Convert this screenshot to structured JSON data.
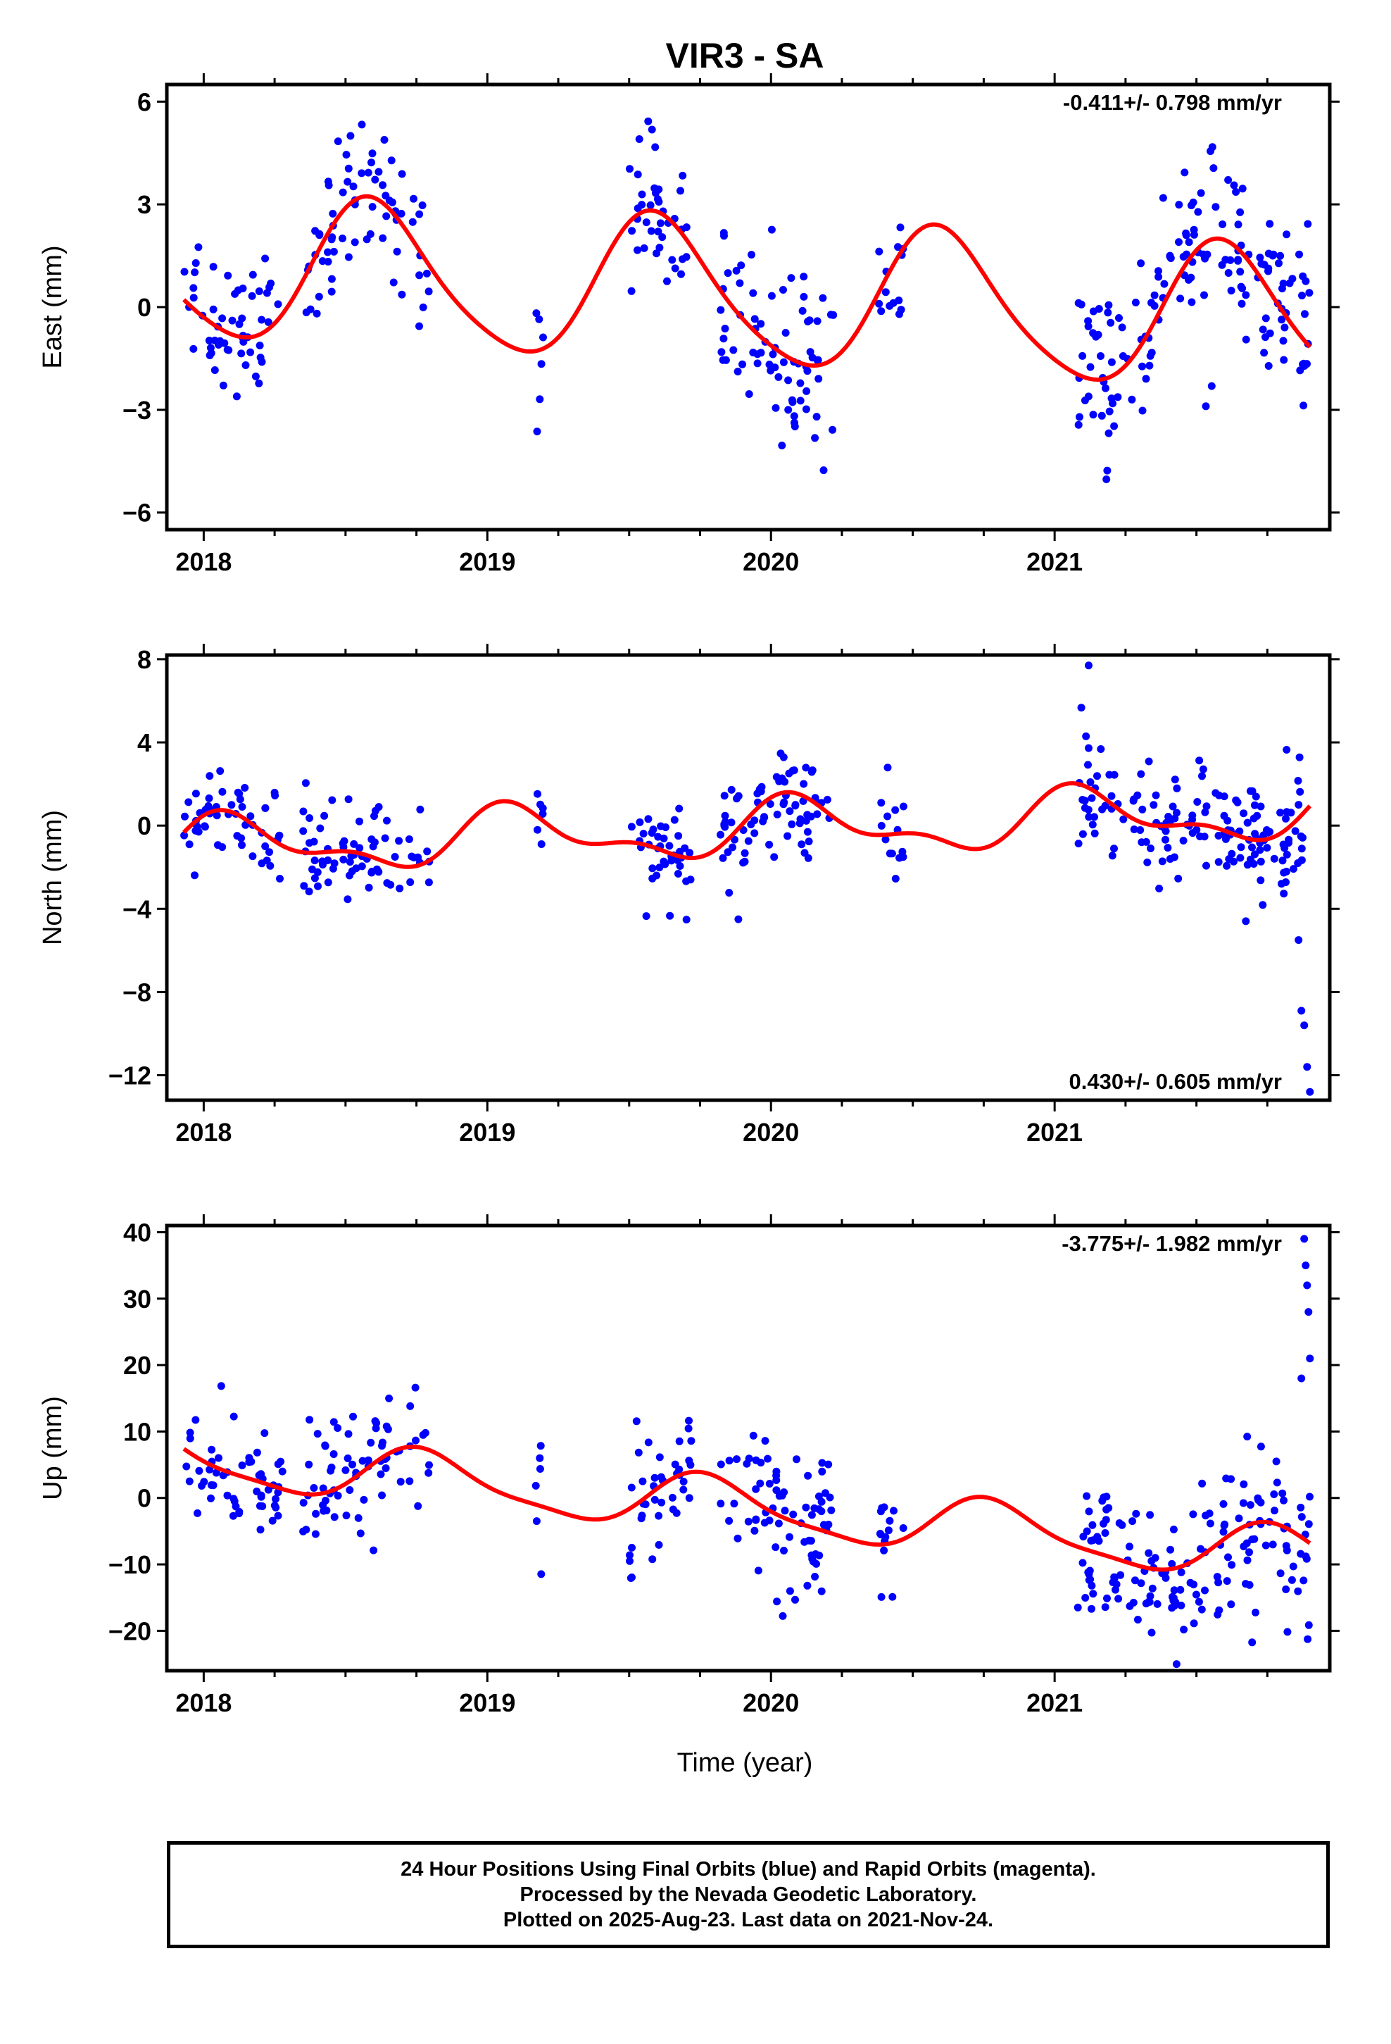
{
  "title": "VIR3 - SA",
  "xlabel": "Time (year)",
  "colors": {
    "data_points": "#0000ff",
    "fit_line": "#ff0000",
    "axes": "#000000"
  },
  "footer": {
    "line1": "24 Hour Positions Using Final Orbits (blue) and Rapid Orbits (magenta).",
    "line2": "Processed by the Nevada Geodetic Laboratory.",
    "line3": "Plotted on 2025-Aug-23. Last data on 2021-Nov-24."
  },
  "chart_data": [
    {
      "type": "scatter",
      "component": "east",
      "ylabel": "East (mm)",
      "rate_label": "-0.411+/- 0.798 mm/yr",
      "xlim": [
        2017.87,
        2021.97
      ],
      "ylim": [
        -6.5,
        6.5
      ],
      "x_ticks": [
        2018,
        2019,
        2020,
        2021
      ],
      "y_ticks": [
        -6,
        -3,
        0,
        3,
        6
      ],
      "y_tick_labels": [
        "−6",
        "−3",
        "0",
        "3",
        "6"
      ],
      "fit": {
        "offset": 0.35,
        "slope": -0.411,
        "ref_year": 2019.9,
        "annual_amp": 2.1,
        "annual_phase_year": 2018.6,
        "semiannual_amp": 0.3
      },
      "series": [
        {
          "label": "data",
          "segments": [
            {
              "start": 2017.93,
              "end": 2018.28,
              "n": 55,
              "spread": 1.0
            },
            {
              "start": 2018.35,
              "end": 2018.7,
              "n": 60,
              "spread": 1.1
            },
            {
              "start": 2018.72,
              "end": 2018.8,
              "n": 10,
              "spread": 1.3
            },
            {
              "start": 2019.17,
              "end": 2019.2,
              "n": 6,
              "spread": 1.6
            },
            {
              "start": 2019.5,
              "end": 2019.72,
              "n": 40,
              "spread": 1.0
            },
            {
              "start": 2019.82,
              "end": 2020.22,
              "n": 75,
              "spread": 1.6
            },
            {
              "start": 2020.38,
              "end": 2020.47,
              "n": 14,
              "spread": 1.0
            },
            {
              "start": 2021.08,
              "end": 2021.9,
              "n": 160,
              "spread": 1.2
            }
          ]
        }
      ]
    },
    {
      "type": "scatter",
      "component": "north",
      "ylabel": "North (mm)",
      "rate_label": "0.430+/- 0.605 mm/yr",
      "xlim": [
        2017.87,
        2021.97
      ],
      "ylim": [
        -13.2,
        8.2
      ],
      "x_ticks": [
        2018,
        2019,
        2020,
        2021
      ],
      "y_ticks": [
        -12,
        -8,
        -4,
        0,
        4,
        8
      ],
      "y_tick_labels": [
        "−12",
        "−8",
        "−4",
        "0",
        "4",
        "8"
      ],
      "fit": {
        "offset": -0.2,
        "slope": 0.43,
        "ref_year": 2019.9,
        "annual_amp": 1.2,
        "annual_phase_year": 2019.1,
        "semiannual_amp": 0.6
      },
      "series": [
        {
          "label": "data",
          "segments": [
            {
              "start": 2017.93,
              "end": 2018.28,
              "n": 55,
              "spread": 1.2
            },
            {
              "start": 2018.35,
              "end": 2018.7,
              "n": 60,
              "spread": 1.2
            },
            {
              "start": 2018.72,
              "end": 2018.8,
              "n": 10,
              "spread": 1.3
            },
            {
              "start": 2019.17,
              "end": 2019.2,
              "n": 6,
              "spread": 1.2
            },
            {
              "start": 2019.5,
              "end": 2019.72,
              "n": 40,
              "spread": 1.2
            },
            {
              "start": 2019.82,
              "end": 2020.22,
              "n": 75,
              "spread": 1.3
            },
            {
              "start": 2020.38,
              "end": 2020.47,
              "n": 14,
              "spread": 1.2
            },
            {
              "start": 2021.08,
              "end": 2021.9,
              "n": 160,
              "spread": 1.3
            }
          ],
          "outliers": [
            [
              2021.86,
              -5.5
            ],
            [
              2021.87,
              -8.9
            ],
            [
              2021.88,
              -9.6
            ],
            [
              2021.89,
              -11.6
            ],
            [
              2021.9,
              -12.8
            ],
            [
              2021.12,
              7.7
            ]
          ]
        }
      ]
    },
    {
      "type": "scatter",
      "component": "up",
      "ylabel": "Up (mm)",
      "rate_label": "-3.775+/- 1.982 mm/yr",
      "xlim": [
        2017.87,
        2021.97
      ],
      "ylim": [
        -26,
        41
      ],
      "x_ticks": [
        2018,
        2019,
        2020,
        2021
      ],
      "y_ticks": [
        -20,
        -10,
        0,
        10,
        20,
        30,
        40
      ],
      "y_tick_labels": [
        "−20",
        "−10",
        "0",
        "10",
        "20",
        "30",
        "40"
      ],
      "fit": {
        "offset": -1.5,
        "slope": -3.775,
        "ref_year": 2019.9,
        "annual_amp": 4.0,
        "annual_phase_year": 2018.78,
        "semiannual_amp": 1.0
      },
      "series": [
        {
          "label": "data",
          "segments": [
            {
              "start": 2017.93,
              "end": 2018.28,
              "n": 55,
              "spread": 4.0
            },
            {
              "start": 2018.35,
              "end": 2018.7,
              "n": 60,
              "spread": 4.5
            },
            {
              "start": 2018.72,
              "end": 2018.8,
              "n": 10,
              "spread": 4.0
            },
            {
              "start": 2019.17,
              "end": 2019.2,
              "n": 6,
              "spread": 5.5
            },
            {
              "start": 2019.5,
              "end": 2019.72,
              "n": 40,
              "spread": 5.0
            },
            {
              "start": 2019.82,
              "end": 2020.22,
              "n": 75,
              "spread": 6.0
            },
            {
              "start": 2020.38,
              "end": 2020.47,
              "n": 14,
              "spread": 5.0
            },
            {
              "start": 2021.08,
              "end": 2021.9,
              "n": 160,
              "spread": 5.5
            }
          ],
          "outliers": [
            [
              2021.88,
              39
            ],
            [
              2021.885,
              35
            ],
            [
              2021.89,
              32
            ],
            [
              2021.895,
              28
            ],
            [
              2021.9,
              21
            ],
            [
              2021.87,
              18
            ],
            [
              2021.43,
              -25
            ]
          ]
        }
      ]
    }
  ]
}
